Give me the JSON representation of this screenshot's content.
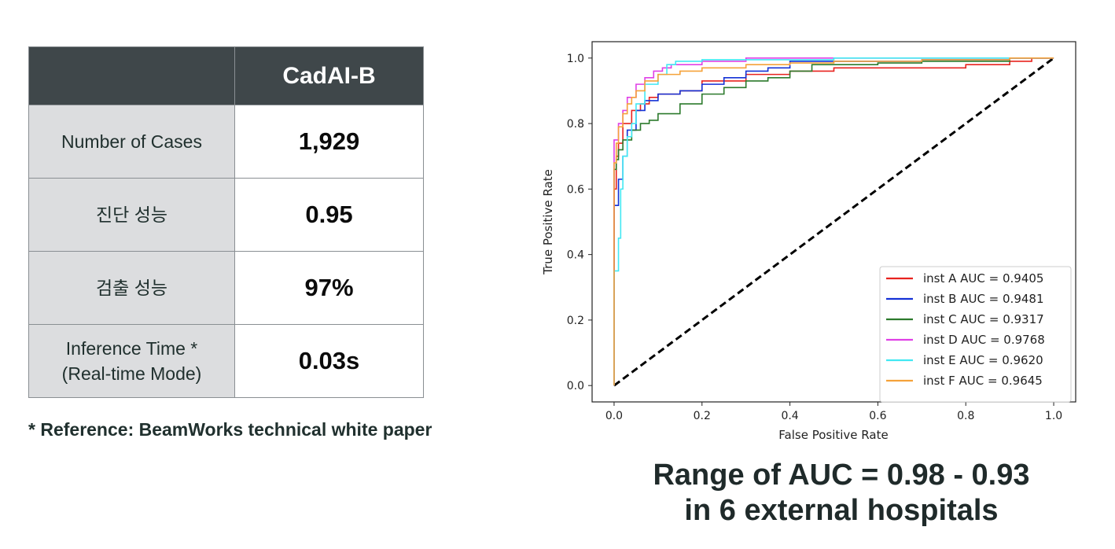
{
  "table": {
    "header": {
      "blank": "",
      "model": "CadAI-B"
    },
    "rows": [
      {
        "label": "Number of Cases",
        "value": "1,929"
      },
      {
        "label": "진단 성능",
        "value": "0.95"
      },
      {
        "label": "검출 성능",
        "value": "97%"
      },
      {
        "label_line1": "Inference Time *",
        "label_line2": "(Real-time Mode)",
        "value": "0.03s"
      }
    ]
  },
  "footnote": "* Reference: BeamWorks technical white paper",
  "headline": {
    "line1": "Range of AUC = 0.98 - 0.93",
    "line2": "in 6 external hospitals"
  },
  "chart_data": {
    "type": "line",
    "xlabel": "False Positive Rate",
    "ylabel": "True Positive Rate",
    "xlim": [
      -0.05,
      1.05
    ],
    "ylim": [
      -0.05,
      1.05
    ],
    "xticks": [
      "0.0",
      "0.2",
      "0.4",
      "0.6",
      "0.8",
      "1.0"
    ],
    "yticks": [
      "0.0",
      "0.2",
      "0.4",
      "0.6",
      "0.8",
      "1.0"
    ],
    "legend_position": "bottom-right",
    "diagonal": {
      "style": "dashed",
      "color": "#000000",
      "from": [
        0,
        0
      ],
      "to": [
        1,
        1
      ]
    },
    "series": [
      {
        "name": "inst A AUC = 0.9405",
        "color": "#e8231f",
        "x": [
          0,
          0.0,
          0.005,
          0.01,
          0.02,
          0.04,
          0.06,
          0.08,
          0.1,
          0.15,
          0.2,
          0.3,
          0.4,
          0.5,
          0.6,
          0.7,
          0.8,
          0.9,
          0.95,
          1.0
        ],
        "y": [
          0,
          0.35,
          0.6,
          0.7,
          0.74,
          0.8,
          0.84,
          0.86,
          0.88,
          0.89,
          0.9,
          0.93,
          0.95,
          0.96,
          0.97,
          0.97,
          0.97,
          0.98,
          0.99,
          1.0
        ]
      },
      {
        "name": "inst B AUC = 0.9481",
        "color": "#1432d6",
        "x": [
          0,
          0.0,
          0.01,
          0.02,
          0.03,
          0.05,
          0.07,
          0.1,
          0.15,
          0.2,
          0.25,
          0.3,
          0.35,
          0.4,
          0.48,
          0.5,
          0.6,
          0.7,
          0.8,
          0.9,
          1.0
        ],
        "y": [
          0,
          0.3,
          0.55,
          0.63,
          0.7,
          0.78,
          0.84,
          0.87,
          0.89,
          0.9,
          0.92,
          0.94,
          0.96,
          0.97,
          0.99,
          0.99,
          0.99,
          0.99,
          0.995,
          0.995,
          1.0
        ]
      },
      {
        "name": "inst C AUC = 0.9317",
        "color": "#2c7a2c",
        "x": [
          0,
          0.0,
          0.005,
          0.01,
          0.02,
          0.04,
          0.06,
          0.08,
          0.1,
          0.15,
          0.2,
          0.25,
          0.3,
          0.35,
          0.4,
          0.45,
          0.5,
          0.6,
          0.7,
          0.8,
          0.9,
          1.0
        ],
        "y": [
          0,
          0.6,
          0.66,
          0.69,
          0.72,
          0.75,
          0.78,
          0.8,
          0.81,
          0.83,
          0.86,
          0.89,
          0.91,
          0.93,
          0.94,
          0.96,
          0.98,
          0.98,
          0.985,
          0.99,
          0.99,
          1.0
        ]
      },
      {
        "name": "inst D AUC = 0.9768",
        "color": "#e040e6",
        "x": [
          0,
          0.0,
          0.01,
          0.02,
          0.03,
          0.05,
          0.07,
          0.09,
          0.11,
          0.13,
          0.15,
          0.2,
          0.3,
          0.4,
          0.5,
          0.6,
          0.7,
          1.0
        ],
        "y": [
          0,
          0.5,
          0.75,
          0.8,
          0.84,
          0.88,
          0.92,
          0.94,
          0.96,
          0.97,
          0.98,
          0.98,
          0.99,
          1.0,
          1.0,
          1.0,
          1.0,
          1.0
        ]
      },
      {
        "name": "inst E AUC = 0.9620",
        "color": "#42e8f2",
        "x": [
          0,
          0.0,
          0.01,
          0.015,
          0.02,
          0.03,
          0.04,
          0.05,
          0.07,
          0.1,
          0.12,
          0.14,
          0.16,
          0.2,
          0.3,
          0.4,
          0.5,
          0.6,
          0.72,
          1.0
        ],
        "y": [
          0,
          0.3,
          0.35,
          0.45,
          0.6,
          0.7,
          0.76,
          0.8,
          0.86,
          0.92,
          0.95,
          0.98,
          0.99,
          0.99,
          0.995,
          0.995,
          0.995,
          1.0,
          1.0,
          1.0
        ]
      },
      {
        "name": "inst F AUC = 0.9645",
        "color": "#f5a23a",
        "x": [
          0,
          0.0,
          0.005,
          0.01,
          0.02,
          0.03,
          0.04,
          0.05,
          0.07,
          0.1,
          0.15,
          0.2,
          0.3,
          0.4,
          0.5,
          0.6,
          0.7,
          0.8,
          0.9,
          1.0
        ],
        "y": [
          0,
          0.55,
          0.68,
          0.74,
          0.79,
          0.83,
          0.86,
          0.88,
          0.9,
          0.93,
          0.95,
          0.96,
          0.97,
          0.98,
          0.985,
          0.99,
          0.99,
          0.995,
          0.995,
          1.0
        ]
      }
    ]
  }
}
